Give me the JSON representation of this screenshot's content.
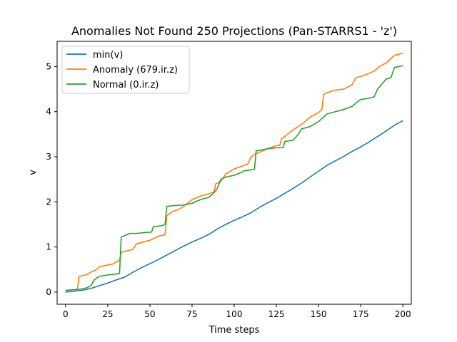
{
  "chart_data": {
    "type": "line",
    "title": "Anomalies Not Found 250 Projections (Pan-STARRS1 - 'z')",
    "xlabel": "Time steps",
    "ylabel": "v",
    "xlim": [
      -5,
      205
    ],
    "ylim": [
      -0.27,
      5.56
    ],
    "xticks": [
      0,
      25,
      50,
      75,
      100,
      125,
      150,
      175,
      200
    ],
    "yticks": [
      0,
      1,
      2,
      3,
      4,
      5
    ],
    "grid": false,
    "legend_position": "top-left",
    "series": [
      {
        "name": "min(v)",
        "color": "#1f77b4",
        "points": [
          [
            0,
            0.0
          ],
          [
            5,
            0.02
          ],
          [
            10,
            0.04
          ],
          [
            15,
            0.08
          ],
          [
            20,
            0.14
          ],
          [
            25,
            0.2
          ],
          [
            30,
            0.27
          ],
          [
            35,
            0.33
          ],
          [
            40,
            0.44
          ],
          [
            45,
            0.54
          ],
          [
            50,
            0.63
          ],
          [
            55,
            0.72
          ],
          [
            60,
            0.82
          ],
          [
            65,
            0.92
          ],
          [
            70,
            1.02
          ],
          [
            75,
            1.11
          ],
          [
            80,
            1.19
          ],
          [
            85,
            1.28
          ],
          [
            90,
            1.4
          ],
          [
            95,
            1.5
          ],
          [
            100,
            1.59
          ],
          [
            105,
            1.67
          ],
          [
            110,
            1.76
          ],
          [
            115,
            1.88
          ],
          [
            120,
            1.98
          ],
          [
            125,
            2.08
          ],
          [
            130,
            2.19
          ],
          [
            135,
            2.3
          ],
          [
            140,
            2.42
          ],
          [
            145,
            2.55
          ],
          [
            150,
            2.68
          ],
          [
            155,
            2.81
          ],
          [
            160,
            2.91
          ],
          [
            165,
            3.01
          ],
          [
            170,
            3.12
          ],
          [
            175,
            3.22
          ],
          [
            180,
            3.33
          ],
          [
            185,
            3.45
          ],
          [
            190,
            3.57
          ],
          [
            195,
            3.7
          ],
          [
            200,
            3.8
          ]
        ]
      },
      {
        "name": "Anomaly (679.ir.z)",
        "color": "#ff7f0e",
        "points": [
          [
            0,
            0.03
          ],
          [
            3,
            0.05
          ],
          [
            7,
            0.06
          ],
          [
            8,
            0.35
          ],
          [
            12,
            0.38
          ],
          [
            15,
            0.44
          ],
          [
            18,
            0.49
          ],
          [
            20,
            0.56
          ],
          [
            25,
            0.6
          ],
          [
            28,
            0.62
          ],
          [
            30,
            0.67
          ],
          [
            32,
            0.7
          ],
          [
            33,
            0.88
          ],
          [
            35,
            0.9
          ],
          [
            40,
            0.95
          ],
          [
            42,
            1.07
          ],
          [
            45,
            1.1
          ],
          [
            50,
            1.15
          ],
          [
            53,
            1.2
          ],
          [
            55,
            1.24
          ],
          [
            59,
            1.27
          ],
          [
            60,
            1.69
          ],
          [
            63,
            1.78
          ],
          [
            67,
            1.83
          ],
          [
            70,
            1.9
          ],
          [
            75,
            2.05
          ],
          [
            80,
            2.13
          ],
          [
            85,
            2.18
          ],
          [
            88,
            2.22
          ],
          [
            89,
            2.4
          ],
          [
            92,
            2.45
          ],
          [
            95,
            2.62
          ],
          [
            100,
            2.73
          ],
          [
            105,
            2.8
          ],
          [
            108,
            2.84
          ],
          [
            110,
            3.0
          ],
          [
            113,
            3.07
          ],
          [
            115,
            3.1
          ],
          [
            120,
            3.18
          ],
          [
            125,
            3.25
          ],
          [
            127,
            3.25
          ],
          [
            128,
            3.4
          ],
          [
            130,
            3.45
          ],
          [
            135,
            3.6
          ],
          [
            140,
            3.72
          ],
          [
            145,
            3.88
          ],
          [
            150,
            3.98
          ],
          [
            152,
            4.05
          ],
          [
            153,
            4.38
          ],
          [
            155,
            4.42
          ],
          [
            160,
            4.48
          ],
          [
            165,
            4.5
          ],
          [
            170,
            4.6
          ],
          [
            172,
            4.75
          ],
          [
            175,
            4.78
          ],
          [
            180,
            4.85
          ],
          [
            183,
            4.9
          ],
          [
            186,
            5.0
          ],
          [
            190,
            5.08
          ],
          [
            195,
            5.25
          ],
          [
            200,
            5.3
          ]
        ]
      },
      {
        "name": "Normal (0.ir.z)",
        "color": "#2ca02c",
        "points": [
          [
            0,
            0.04
          ],
          [
            5,
            0.05
          ],
          [
            8,
            0.06
          ],
          [
            10,
            0.07
          ],
          [
            13,
            0.1
          ],
          [
            15,
            0.14
          ],
          [
            17,
            0.27
          ],
          [
            20,
            0.35
          ],
          [
            25,
            0.38
          ],
          [
            30,
            0.4
          ],
          [
            32,
            0.41
          ],
          [
            33,
            1.22
          ],
          [
            35,
            1.25
          ],
          [
            38,
            1.3
          ],
          [
            42,
            1.3
          ],
          [
            47,
            1.32
          ],
          [
            51,
            1.33
          ],
          [
            52,
            1.45
          ],
          [
            57,
            1.47
          ],
          [
            59,
            1.5
          ],
          [
            60,
            1.9
          ],
          [
            65,
            1.92
          ],
          [
            70,
            1.93
          ],
          [
            75,
            1.97
          ],
          [
            80,
            2.05
          ],
          [
            85,
            2.1
          ],
          [
            88,
            2.2
          ],
          [
            90,
            2.3
          ],
          [
            92,
            2.5
          ],
          [
            95,
            2.55
          ],
          [
            100,
            2.59
          ],
          [
            104,
            2.65
          ],
          [
            106,
            2.69
          ],
          [
            112,
            2.72
          ],
          [
            113,
            3.13
          ],
          [
            120,
            3.18
          ],
          [
            125,
            3.2
          ],
          [
            129,
            3.2
          ],
          [
            130,
            3.34
          ],
          [
            135,
            3.37
          ],
          [
            138,
            3.5
          ],
          [
            140,
            3.62
          ],
          [
            145,
            3.67
          ],
          [
            150,
            3.78
          ],
          [
            155,
            3.95
          ],
          [
            160,
            4.0
          ],
          [
            165,
            4.05
          ],
          [
            170,
            4.12
          ],
          [
            173,
            4.22
          ],
          [
            175,
            4.27
          ],
          [
            180,
            4.3
          ],
          [
            183,
            4.33
          ],
          [
            185,
            4.5
          ],
          [
            190,
            4.72
          ],
          [
            193,
            4.76
          ],
          [
            195,
            4.98
          ],
          [
            200,
            5.02
          ]
        ]
      }
    ]
  }
}
